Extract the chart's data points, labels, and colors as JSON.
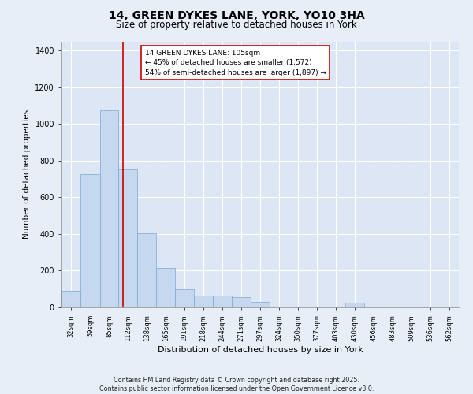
{
  "title1": "14, GREEN DYKES LANE, YORK, YO10 3HA",
  "title2": "Size of property relative to detached houses in York",
  "xlabel": "Distribution of detached houses by size in York",
  "ylabel": "Number of detached properties",
  "bar_color": "#c5d8f0",
  "bar_edge_color": "#7aa8d0",
  "background_color": "#dce6f5",
  "fig_background_color": "#e8eef8",
  "grid_color": "#ffffff",
  "annotation_text": "14 GREEN DYKES LANE: 105sqm\n← 45% of detached houses are smaller (1,572)\n54% of semi-detached houses are larger (1,897) →",
  "vline_x": 105,
  "vline_color": "#cc0000",
  "footnote": "Contains HM Land Registry data © Crown copyright and database right 2025.\nContains public sector information licensed under the Open Government Licence v3.0.",
  "categories": [
    "32sqm",
    "59sqm",
    "85sqm",
    "112sqm",
    "138sqm",
    "165sqm",
    "191sqm",
    "218sqm",
    "244sqm",
    "271sqm",
    "297sqm",
    "324sqm",
    "350sqm",
    "377sqm",
    "403sqm",
    "430sqm",
    "456sqm",
    "483sqm",
    "509sqm",
    "536sqm",
    "562sqm"
  ],
  "bin_edges": [
    18.5,
    45.5,
    72.5,
    98.5,
    124.5,
    151.5,
    177.5,
    204.5,
    230.5,
    257.5,
    283.5,
    310.5,
    336.5,
    363.5,
    389.5,
    416.5,
    442.5,
    469.5,
    495.5,
    522.5,
    548.5,
    575.5
  ],
  "values": [
    90,
    725,
    1075,
    750,
    405,
    215,
    100,
    65,
    65,
    55,
    30,
    5,
    0,
    0,
    0,
    25,
    0,
    0,
    0,
    0,
    0
  ],
  "ylim": [
    0,
    1450
  ],
  "yticks": [
    0,
    200,
    400,
    600,
    800,
    1000,
    1200,
    1400
  ]
}
